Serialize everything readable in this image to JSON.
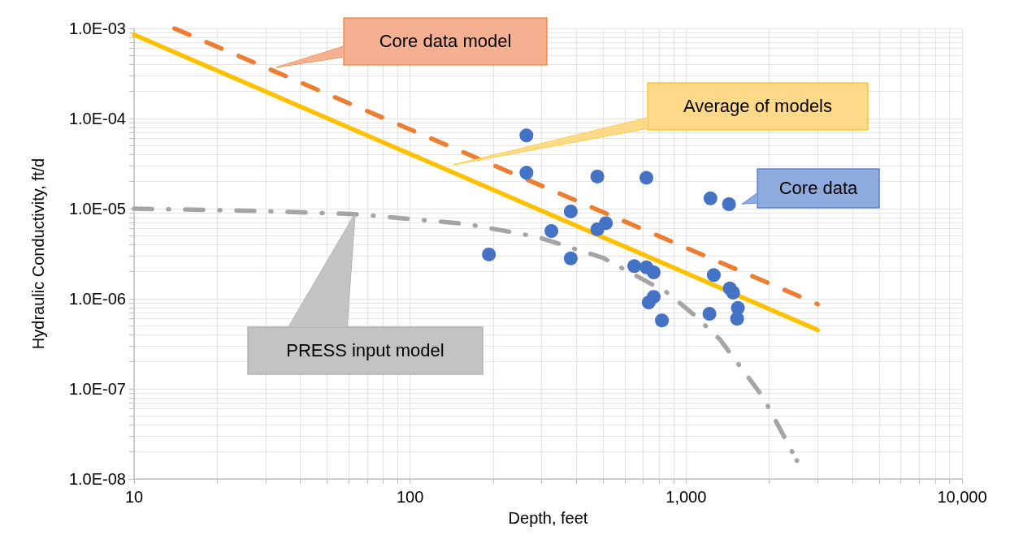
{
  "chart_data": {
    "type": "scatter",
    "xlabel": "Depth, feet",
    "ylabel": "Hydraulic Conductivity, ft/d",
    "log": "xy",
    "grid": true,
    "legend": false,
    "xlim": [
      10,
      10000
    ],
    "xticks": [
      10,
      100,
      {
        "value": 1000,
        "label": "1,000"
      },
      {
        "value": 10000,
        "label": "10,000"
      }
    ],
    "ylim": [
      1e-08,
      0.001
    ],
    "yticks": [
      {
        "value": 1e-08,
        "label": "1.0E-08"
      },
      {
        "value": 1e-07,
        "label": "1.0E-07"
      },
      {
        "value": 1e-06,
        "label": "1.0E-06"
      },
      {
        "value": 1e-05,
        "label": "1.0E-05"
      },
      {
        "value": 0.0001,
        "label": "1.0E-04"
      },
      {
        "value": 0.001,
        "label": "1.0E-03"
      }
    ],
    "series": [
      {
        "name": "PRESS input model",
        "type": "line",
        "color": "#a5a5a5",
        "line_style": "dashdot",
        "marker": "none",
        "x": [
          10,
          26,
          63,
          158,
          286,
          500,
          850,
          1070,
          1330,
          1900,
          2520
        ],
        "values": [
          1e-05,
          9.5e-06,
          8.7e-06,
          6.8e-06,
          4.9e-06,
          2.85e-06,
          1.18e-06,
          6.6e-07,
          3.5e-07,
          8.1e-08,
          1.6e-08
        ]
      },
      {
        "name": "Core data model",
        "type": "line",
        "color": "#ed7d31",
        "line_style": "dashed",
        "marker": "none",
        "x": [
          14,
          3000
        ],
        "values": [
          0.001,
          8.7e-07
        ]
      },
      {
        "name": "Average of models",
        "type": "line",
        "color": "#ffc000",
        "line_style": "solid",
        "marker": "none",
        "x": [
          10,
          3000
        ],
        "values": [
          0.00085,
          4.5e-07
        ]
      },
      {
        "name": "Core data",
        "color": "#4472c4",
        "marker": "circle",
        "x": [
          264,
          264,
          477,
          718,
          1225,
          1430,
          382,
          512,
          477,
          325,
          193,
          382,
          649,
          718,
          763,
          1260,
          1440,
          1480,
          763,
          732,
          1215,
          1540,
          1530,
          817
        ],
        "values": [
          6.5e-05,
          2.5e-05,
          2.27e-05,
          2.2e-05,
          1.3e-05,
          1.12e-05,
          9.3e-06,
          6.9e-06,
          5.9e-06,
          5.65e-06,
          3.1e-06,
          2.8e-06,
          2.3e-06,
          2.23e-06,
          1.96e-06,
          1.83e-06,
          1.3e-06,
          1.17e-06,
          1.05e-06,
          9.1e-07,
          6.8e-07,
          7.9e-07,
          6e-07,
          5.75e-07
        ]
      }
    ]
  }
}
